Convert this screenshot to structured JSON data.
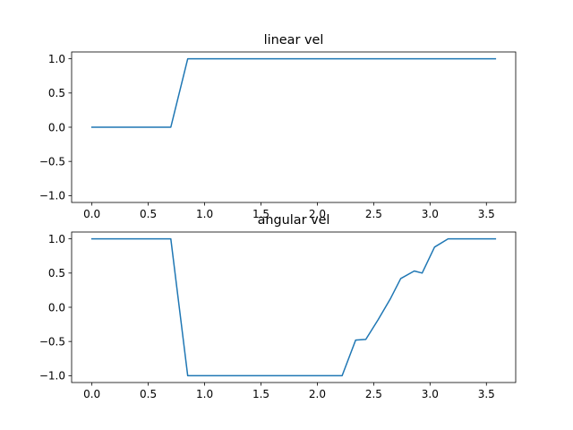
{
  "chart_data": [
    {
      "type": "line",
      "title": "linear vel",
      "xlabel": "",
      "ylabel": "",
      "xlim": [
        -0.18,
        3.76
      ],
      "ylim": [
        -1.1,
        1.1
      ],
      "x_ticks": [
        0.0,
        0.5,
        1.0,
        1.5,
        2.0,
        2.5,
        3.0,
        3.5
      ],
      "x_tick_labels": [
        "0.0",
        "0.5",
        "1.0",
        "1.5",
        "2.0",
        "2.5",
        "3.0",
        "3.5"
      ],
      "y_ticks": [
        1.0,
        0.5,
        0.0,
        -0.5,
        -1.0
      ],
      "y_tick_labels": [
        "1.0",
        "0.5",
        "0.0",
        "−0.5",
        "−1.0"
      ],
      "grid": false,
      "series": [
        {
          "color": "#1f77b4",
          "x": [
            0.0,
            0.7,
            0.85,
            3.58
          ],
          "y": [
            0.0,
            0.0,
            1.0,
            1.0
          ]
        }
      ]
    },
    {
      "type": "line",
      "title": "angular vel",
      "xlabel": "",
      "ylabel": "",
      "xlim": [
        -0.18,
        3.76
      ],
      "ylim": [
        -1.1,
        1.1
      ],
      "x_ticks": [
        0.0,
        0.5,
        1.0,
        1.5,
        2.0,
        2.5,
        3.0,
        3.5
      ],
      "x_tick_labels": [
        "0.0",
        "0.5",
        "1.0",
        "1.5",
        "2.0",
        "2.5",
        "3.0",
        "3.5"
      ],
      "y_ticks": [
        1.0,
        0.5,
        0.0,
        -0.5,
        -1.0
      ],
      "y_tick_labels": [
        "1.0",
        "0.5",
        "0.0",
        "−0.5",
        "−1.0"
      ],
      "grid": false,
      "series": [
        {
          "color": "#1f77b4",
          "x": [
            0.0,
            0.7,
            0.85,
            2.22,
            2.34,
            2.43,
            2.54,
            2.65,
            2.74,
            2.86,
            2.93,
            3.04,
            3.16,
            3.58
          ],
          "y": [
            1.0,
            1.0,
            -1.0,
            -1.0,
            -0.48,
            -0.47,
            -0.18,
            0.13,
            0.42,
            0.53,
            0.5,
            0.88,
            1.0,
            1.0
          ]
        }
      ]
    }
  ]
}
